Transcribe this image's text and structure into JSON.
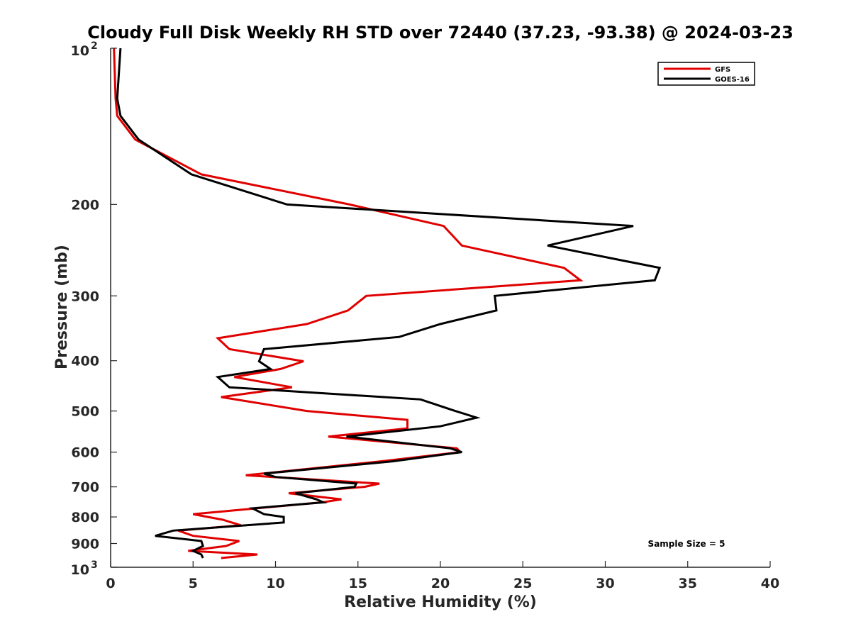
{
  "chart_data": {
    "type": "line",
    "title": "Cloudy Full Disk Weekly RH STD over 72440 (37.23, -93.38) @ 2024-03-23",
    "xlabel": "Relative Humidity (%)",
    "ylabel": "Pressure (mb)",
    "xlim": [
      0,
      40
    ],
    "ylim": [
      100,
      1000
    ],
    "y_scale": "log",
    "y_reversed": true,
    "x_ticks": [
      0,
      5,
      10,
      15,
      20,
      25,
      30,
      35,
      40
    ],
    "x_tick_labels": [
      "0",
      "5",
      "10",
      "15",
      "20",
      "25",
      "30",
      "35",
      "40"
    ],
    "y_ticks": [
      100,
      200,
      300,
      400,
      500,
      600,
      700,
      800,
      900,
      1000
    ],
    "y_tick_labels": [
      {
        "base": "10",
        "exp": "2"
      },
      {
        "base": "200",
        "exp": ""
      },
      {
        "base": "300",
        "exp": ""
      },
      {
        "base": "400",
        "exp": ""
      },
      {
        "base": "500",
        "exp": ""
      },
      {
        "base": "600",
        "exp": ""
      },
      {
        "base": "700",
        "exp": ""
      },
      {
        "base": "800",
        "exp": ""
      },
      {
        "base": "900",
        "exp": ""
      },
      {
        "base": "10",
        "exp": "3"
      }
    ],
    "grid": false,
    "legend_position": "top-right",
    "annotation": "Sample Size = 5",
    "series": [
      {
        "name": "GFS",
        "color": "#e00000",
        "points": [
          [
            0.2,
            100
          ],
          [
            0.3,
            125
          ],
          [
            0.4,
            135
          ],
          [
            1.5,
            150
          ],
          [
            5.5,
            175
          ],
          [
            14.5,
            200
          ],
          [
            20.2,
            220
          ],
          [
            21.3,
            240
          ],
          [
            27.5,
            265
          ],
          [
            28.5,
            280
          ],
          [
            15.5,
            300
          ],
          [
            14.4,
            320
          ],
          [
            11.9,
            340
          ],
          [
            6.5,
            362
          ],
          [
            7.2,
            380
          ],
          [
            11.7,
            401
          ],
          [
            10.3,
            415
          ],
          [
            7.5,
            430
          ],
          [
            11.0,
            450
          ],
          [
            6.7,
            470
          ],
          [
            11.9,
            500
          ],
          [
            18.0,
            520
          ],
          [
            18.0,
            540
          ],
          [
            13.2,
            560
          ],
          [
            21.0,
            590
          ],
          [
            21.2,
            600
          ],
          [
            16.4,
            625
          ],
          [
            8.2,
            665
          ],
          [
            16.3,
            690
          ],
          [
            15.4,
            700
          ],
          [
            10.8,
            720
          ],
          [
            14.0,
            740
          ],
          [
            12.8,
            750
          ],
          [
            5.0,
            790
          ],
          [
            6.8,
            810
          ],
          [
            7.9,
            830
          ],
          [
            4.1,
            850
          ],
          [
            5.0,
            870
          ],
          [
            7.8,
            890
          ],
          [
            7.0,
            910
          ],
          [
            4.7,
            930
          ],
          [
            8.9,
            945
          ],
          [
            6.7,
            960
          ]
        ]
      },
      {
        "name": "GOES-16",
        "color": "#000000",
        "points": [
          [
            0.6,
            100
          ],
          [
            0.4,
            125
          ],
          [
            0.6,
            135
          ],
          [
            1.7,
            150
          ],
          [
            4.9,
            175
          ],
          [
            10.7,
            200
          ],
          [
            31.7,
            220
          ],
          [
            26.5,
            240
          ],
          [
            33.3,
            265
          ],
          [
            33.0,
            280
          ],
          [
            23.3,
            300
          ],
          [
            23.4,
            320
          ],
          [
            20.0,
            340
          ],
          [
            17.5,
            360
          ],
          [
            9.3,
            380
          ],
          [
            9.0,
            401
          ],
          [
            9.7,
            415
          ],
          [
            6.5,
            430
          ],
          [
            7.2,
            450
          ],
          [
            18.8,
            475
          ],
          [
            20.9,
            500
          ],
          [
            22.2,
            515
          ],
          [
            20.0,
            535
          ],
          [
            14.3,
            560
          ],
          [
            20.6,
            590
          ],
          [
            21.3,
            600
          ],
          [
            17.1,
            625
          ],
          [
            9.3,
            660
          ],
          [
            10.0,
            670
          ],
          [
            14.9,
            690
          ],
          [
            14.8,
            700
          ],
          [
            11.2,
            720
          ],
          [
            12.5,
            740
          ],
          [
            12.9,
            750
          ],
          [
            8.6,
            770
          ],
          [
            9.3,
            790
          ],
          [
            10.5,
            800
          ],
          [
            10.5,
            820
          ],
          [
            3.8,
            850
          ],
          [
            2.7,
            870
          ],
          [
            5.5,
            890
          ],
          [
            5.6,
            910
          ],
          [
            5.0,
            930
          ],
          [
            5.5,
            945
          ],
          [
            5.6,
            960
          ]
        ]
      }
    ]
  }
}
